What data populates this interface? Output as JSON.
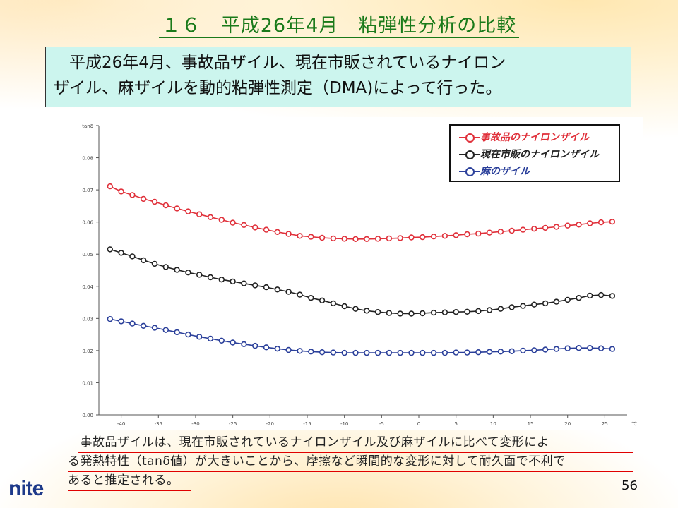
{
  "title": "１６　平成26年4月　粘弾性分析の比較",
  "intro": {
    "line1": "　平成26年4月、事故品ザイル、現在市販されているナイロン",
    "line2": "ザイル、麻ザイルを動的粘弾性測定（DMA)によって行った。"
  },
  "note": {
    "line1": "　事故品ザイルは、現在市販されているナイロンザイル及び麻ザイルに比べて変形によ",
    "line2": "る発熱特性（tanδ値）が大きいことから、摩擦など瞬間的な変形に対して耐久面で不利で",
    "line3": "あると推定される。"
  },
  "page_number": "56",
  "logo": {
    "text": "nite"
  },
  "colors": {
    "title": "#1a7a1a",
    "infobox": "#ccf5ee",
    "underline": "#e00000"
  },
  "chart_data": {
    "type": "line",
    "ylabel": "tanδ",
    "xunit": "℃",
    "xlim": [
      -43,
      28
    ],
    "ylim": [
      0.0,
      0.09
    ],
    "xticks": [
      -40,
      -35,
      -30,
      -25,
      -20,
      -15,
      -10,
      -5,
      0,
      5,
      10,
      15,
      20,
      25
    ],
    "yticks": [
      0.0,
      0.01,
      0.02,
      0.03,
      0.04,
      0.05,
      0.06,
      0.07,
      0.08,
      0.09
    ],
    "ytick_labels": [
      "0.00",
      "0.01",
      "0.02",
      "0.03",
      "0.04",
      "0.05",
      "0.06",
      "0.07",
      "0.08",
      "tanδ"
    ],
    "legend_position": "top-right",
    "series": [
      {
        "name": "事故品のナイロンザイル",
        "color": "#e0303a",
        "x": [
          -41.5,
          -40,
          -38.5,
          -37,
          -35.5,
          -34,
          -32.5,
          -31,
          -29.5,
          -28,
          -26.5,
          -25,
          -23.5,
          -22,
          -20.5,
          -19,
          -17.5,
          -16,
          -14.5,
          -13,
          -11.5,
          -10,
          -8.5,
          -7,
          -5.5,
          -4,
          -2.5,
          -1,
          0.5,
          2,
          3.5,
          5,
          6.5,
          8,
          9.5,
          11,
          12.5,
          14,
          15.5,
          17,
          18.5,
          20,
          21.5,
          23,
          24.5,
          26
        ],
        "y": [
          0.0711,
          0.0695,
          0.0684,
          0.0672,
          0.0663,
          0.0652,
          0.0642,
          0.0633,
          0.0624,
          0.0615,
          0.0607,
          0.0598,
          0.0591,
          0.0583,
          0.0576,
          0.0569,
          0.0563,
          0.0557,
          0.0554,
          0.0551,
          0.0549,
          0.0548,
          0.0547,
          0.0547,
          0.0548,
          0.0549,
          0.055,
          0.0552,
          0.0553,
          0.0555,
          0.0557,
          0.0559,
          0.0562,
          0.0564,
          0.0567,
          0.057,
          0.0573,
          0.0576,
          0.0579,
          0.0582,
          0.0585,
          0.0589,
          0.0592,
          0.0596,
          0.0599,
          0.0601
        ]
      },
      {
        "name": "現在市販のナイロンザイル",
        "color": "#222222",
        "x": [
          -41.5,
          -40,
          -38.5,
          -37,
          -35.5,
          -34,
          -32.5,
          -31,
          -29.5,
          -28,
          -26.5,
          -25,
          -23.5,
          -22,
          -20.5,
          -19,
          -17.5,
          -16,
          -14.5,
          -13,
          -11.5,
          -10,
          -8.5,
          -7,
          -5.5,
          -4,
          -2.5,
          -1,
          0.5,
          2,
          3.5,
          5,
          6.5,
          8,
          9.5,
          11,
          12.5,
          14,
          15.5,
          17,
          18.5,
          20,
          21.5,
          23,
          24.5,
          26
        ],
        "y": [
          0.0515,
          0.0504,
          0.0493,
          0.0481,
          0.047,
          0.046,
          0.0451,
          0.0443,
          0.0436,
          0.0428,
          0.0421,
          0.0415,
          0.0409,
          0.0403,
          0.0397,
          0.039,
          0.0383,
          0.0374,
          0.0364,
          0.0356,
          0.0347,
          0.0338,
          0.033,
          0.0324,
          0.032,
          0.0317,
          0.0315,
          0.0315,
          0.0316,
          0.0318,
          0.0319,
          0.032,
          0.0321,
          0.0323,
          0.0326,
          0.033,
          0.0335,
          0.0339,
          0.0343,
          0.0347,
          0.0352,
          0.0358,
          0.0364,
          0.0371,
          0.0373,
          0.037
        ]
      },
      {
        "name": "麻のザイル",
        "color": "#2a3f9a",
        "x": [
          -41.5,
          -40,
          -38.5,
          -37,
          -35.5,
          -34,
          -32.5,
          -31,
          -29.5,
          -28,
          -26.5,
          -25,
          -23.5,
          -22,
          -20.5,
          -19,
          -17.5,
          -16,
          -14.5,
          -13,
          -11.5,
          -10,
          -8.5,
          -7,
          -5.5,
          -4,
          -2.5,
          -1,
          0.5,
          2,
          3.5,
          5,
          6.5,
          8,
          9.5,
          11,
          12.5,
          14,
          15.5,
          17,
          18.5,
          20,
          21.5,
          23,
          24.5,
          26
        ],
        "y": [
          0.0298,
          0.0291,
          0.0284,
          0.0277,
          0.0271,
          0.0264,
          0.0257,
          0.025,
          0.0243,
          0.0237,
          0.0231,
          0.0225,
          0.022,
          0.0215,
          0.021,
          0.0206,
          0.0202,
          0.0199,
          0.0197,
          0.0195,
          0.0194,
          0.0193,
          0.0193,
          0.0193,
          0.0193,
          0.0193,
          0.0193,
          0.0193,
          0.0193,
          0.0193,
          0.0193,
          0.0194,
          0.0194,
          0.0195,
          0.0196,
          0.0197,
          0.0198,
          0.02,
          0.0201,
          0.0203,
          0.0205,
          0.0207,
          0.0208,
          0.0208,
          0.0207,
          0.0205
        ]
      }
    ]
  }
}
